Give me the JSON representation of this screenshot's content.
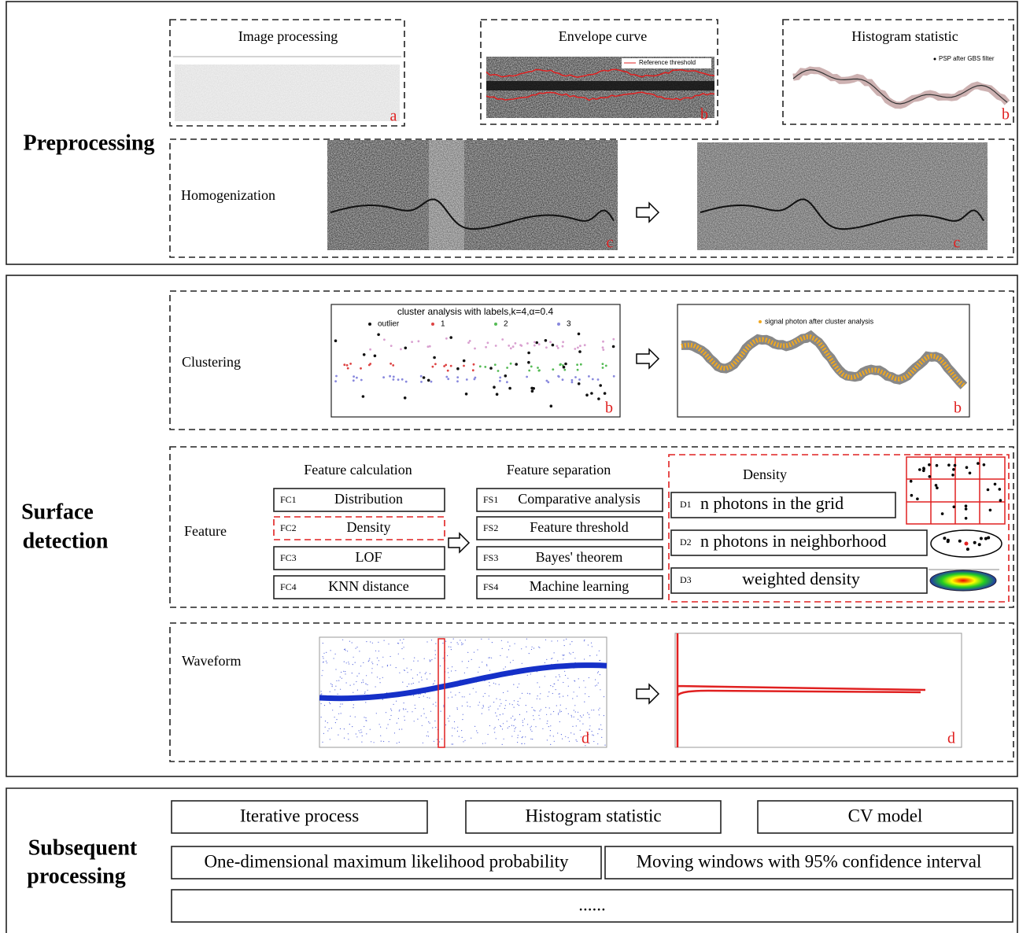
{
  "preprocessing": {
    "title": "Preprocessing",
    "image_processing": {
      "title": "Image processing",
      "tag": "a"
    },
    "envelope_curve": {
      "title": "Envelope curve",
      "legend": "Reference threshold",
      "tag": "b"
    },
    "histogram_statistic": {
      "title": "Histogram statistic",
      "legend": "PSP after GBS filter",
      "tag": "b"
    },
    "homogenization": {
      "title": "Homogenization",
      "tags": [
        "c",
        "c"
      ]
    }
  },
  "surface_detection": {
    "title_lines": [
      "Surface",
      "detection"
    ],
    "clustering": {
      "title": "Clustering",
      "plot_title": "cluster analysis with labels,k=4,α=0.4",
      "legend": [
        "outlier",
        "1",
        "2",
        "3"
      ],
      "result_legend": "signal photon after cluster analysis",
      "tags": [
        "b",
        "b"
      ]
    },
    "feature": {
      "title": "Feature",
      "calculation": {
        "title": "Feature calculation",
        "items": [
          {
            "code": "FC1",
            "label": "Distribution"
          },
          {
            "code": "FC2",
            "label": "Density"
          },
          {
            "code": "FC3",
            "label": "LOF"
          },
          {
            "code": "FC4",
            "label": "KNN distance"
          }
        ]
      },
      "separation": {
        "title": "Feature separation",
        "items": [
          {
            "code": "FS1",
            "label": "Comparative analysis"
          },
          {
            "code": "FS2",
            "label": "Feature threshold"
          },
          {
            "code": "FS3",
            "label": "Bayes' theorem"
          },
          {
            "code": "FS4",
            "label": "Machine learning"
          }
        ]
      },
      "density": {
        "title": "Density",
        "items": [
          {
            "code": "D1",
            "label": "n photons in the grid"
          },
          {
            "code": "D2",
            "label": "n photons in neighborhood"
          },
          {
            "code": "D3",
            "label": "weighted density"
          }
        ]
      }
    },
    "waveform": {
      "title": "Waveform",
      "tags": [
        "d",
        "d"
      ]
    }
  },
  "subsequent_processing": {
    "title_lines": [
      "Subsequent",
      "processing"
    ],
    "methods": [
      "Iterative process",
      "Histogram statistic",
      "CV model",
      "One-dimensional maximum likelihood probability",
      "Moving windows with 95% confidence interval",
      "......"
    ]
  }
}
